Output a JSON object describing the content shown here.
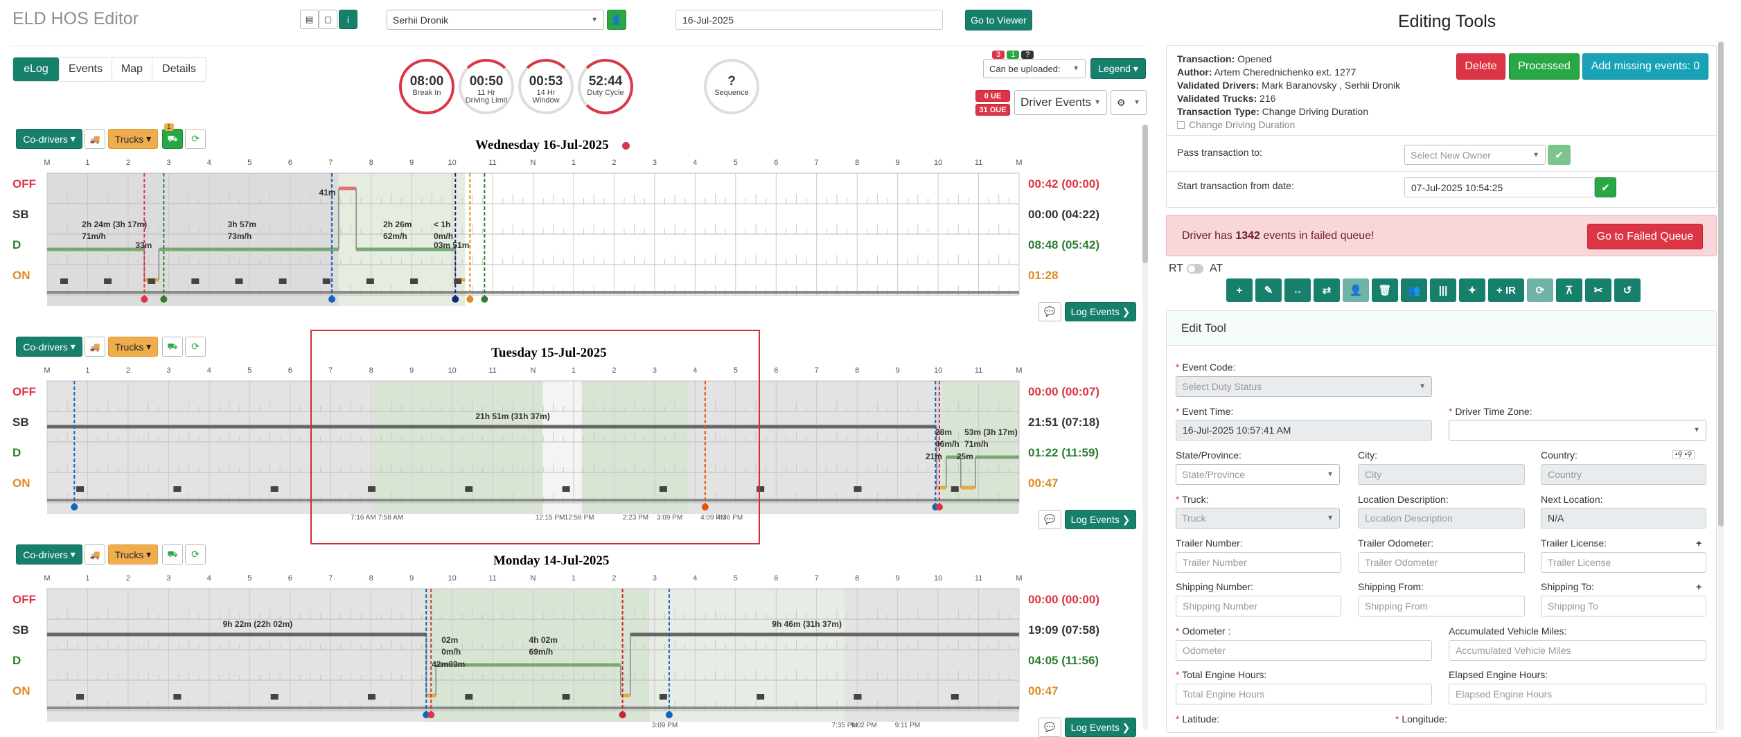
{
  "app": {
    "title": "ELD HOS Editor",
    "driver": "Serhii Dronik",
    "date": "16-Jul-2025",
    "viewer_btn": "Go to Viewer"
  },
  "tabs": [
    "eLog",
    "Events",
    "Map",
    "Details"
  ],
  "gauges": [
    {
      "value": "08:00",
      "l1": "Break In",
      "l2": ""
    },
    {
      "value": "00:50",
      "l1": "11 Hr",
      "l2": "Driving Limit"
    },
    {
      "value": "00:53",
      "l1": "14 Hr",
      "l2": "Window"
    },
    {
      "value": "52:44",
      "l1": "Duty Cycle",
      "l2": ""
    },
    {
      "value": "?",
      "l1": "Sequence",
      "l2": ""
    }
  ],
  "upload": {
    "badge_red": "3",
    "badge_green": "1",
    "badge_dark": "?",
    "select": "Can be uploaded:",
    "legend": "Legend",
    "ue": "0 UE",
    "oue": "31 OUE",
    "driver_events": "Driver Events"
  },
  "toolbar": {
    "codrivers": "Co-drivers",
    "trucks": "Trucks",
    "badge": "1"
  },
  "status_labels": [
    "OFF",
    "SB",
    "D",
    "ON"
  ],
  "hour_labels": [
    "M",
    "1",
    "2",
    "3",
    "4",
    "5",
    "6",
    "7",
    "8",
    "9",
    "10",
    "11",
    "N",
    "1",
    "2",
    "3",
    "4",
    "5",
    "6",
    "7",
    "8",
    "9",
    "10",
    "11",
    "M"
  ],
  "days": [
    {
      "title": "Wednesday 16-Jul-2025",
      "totals": [
        "00:42 (00:00)",
        "00:00 (04:22)",
        "08:48 (05:42)",
        "01:28"
      ],
      "labels": [
        {
          "t": "41m",
          "x": 0.294,
          "r": 0.12
        },
        {
          "t": "2h 24m (3h 17m)",
          "x": 0.05,
          "r": 0.38
        },
        {
          "t": "71m/h",
          "x": 0.05,
          "r": 0.48
        },
        {
          "t": "3h 57m",
          "x": 0.2,
          "r": 0.38
        },
        {
          "t": "73m/h",
          "x": 0.2,
          "r": 0.48
        },
        {
          "t": "2h 26m",
          "x": 0.36,
          "r": 0.38
        },
        {
          "t": "62m/h",
          "x": 0.36,
          "r": 0.48
        },
        {
          "t": "< 1h",
          "x": 0.412,
          "r": 0.38
        },
        {
          "t": "0m/h",
          "x": 0.412,
          "r": 0.48
        },
        {
          "t": "33m",
          "x": 0.105,
          "r": 0.55
        },
        {
          "t": "03m 51m",
          "x": 0.412,
          "r": 0.55
        }
      ],
      "log_btn": "Log Events"
    },
    {
      "title": "Tuesday 15-Jul-2025",
      "totals": [
        "00:00 (00:07)",
        "21:51 (07:18)",
        "01:22 (11:59)",
        "00:47"
      ],
      "labels": [
        {
          "t": "21h 51m (31h 37m)",
          "x": 0.455,
          "r": 0.25
        },
        {
          "t": "28m",
          "x": 0.928,
          "r": 0.38
        },
        {
          "t": "53m (3h 17m)",
          "x": 0.958,
          "r": 0.38
        },
        {
          "t": "46m/h",
          "x": 0.928,
          "r": 0.48
        },
        {
          "t": "71m/h",
          "x": 0.958,
          "r": 0.48
        },
        {
          "t": "21m",
          "x": 0.918,
          "r": 0.58
        },
        {
          "t": "25m",
          "x": 0.95,
          "r": 0.58
        }
      ],
      "times": [
        {
          "t": "7:16 AM 7:58 AM",
          "x": 0.33
        },
        {
          "t": "12:15 PM",
          "x": 0.52
        },
        {
          "t": "12:58 PM",
          "x": 0.55
        },
        {
          "t": "2:23 PM",
          "x": 0.61
        },
        {
          "t": "3:09 PM",
          "x": 0.645
        },
        {
          "t": "4:09 PM",
          "x": 0.69
        },
        {
          "t": "4:36 PM",
          "x": 0.707
        }
      ],
      "log_btn": "Log Events"
    },
    {
      "title": "Monday 14-Jul-2025",
      "totals": [
        "00:00 (00:00)",
        "19:09 (07:58)",
        "04:05 (11:56)",
        "00:47"
      ],
      "labels": [
        {
          "t": "9h 22m (22h 02m)",
          "x": 0.195,
          "r": 0.25
        },
        {
          "t": "9h 46m (31h 37m)",
          "x": 0.76,
          "r": 0.25
        },
        {
          "t": "02m",
          "x": 0.42,
          "r": 0.38
        },
        {
          "t": "4h 02m",
          "x": 0.51,
          "r": 0.38
        },
        {
          "t": "0m/h",
          "x": 0.42,
          "r": 0.48
        },
        {
          "t": "69m/h",
          "x": 0.51,
          "r": 0.48
        },
        {
          "t": "42m03m",
          "x": 0.41,
          "r": 0.58
        }
      ],
      "times": [
        {
          "t": "3:09 PM",
          "x": 0.64
        },
        {
          "t": "7:35 PM",
          "x": 0.825
        },
        {
          "t": "9:02 PM",
          "x": 0.845
        },
        {
          "t": "9:11 PM",
          "x": 0.89
        }
      ],
      "log_btn": "Log Events"
    }
  ],
  "editing": {
    "title": "Editing Tools",
    "info": [
      {
        "k": "Transaction:",
        "v": " Opened"
      },
      {
        "k": "Author:",
        "v": " Artem Cherednichenko ext. 1277"
      },
      {
        "k": "Validated Drivers:",
        "v": " Mark Baranovsky , Serhii Dronik"
      },
      {
        "k": "Validated Trucks:",
        "v": " 216"
      },
      {
        "k": "Transaction Type:",
        "v": " Change Driving Duration"
      }
    ],
    "checkbox": "Change Driving Duration",
    "delete": "Delete",
    "processed": "Processed",
    "add_missing": "Add missing events: 0",
    "pass_label": "Pass transaction to:",
    "pass_ph": "Select New Owner",
    "start_label": "Start transaction from date:",
    "start_val": "07-Jul-2025 10:54:25",
    "failed_pre": "Driver has ",
    "failed_num": "1342",
    "failed_post": " events in failed queue!",
    "failed_btn": "Go to Failed Queue",
    "rt": "RT",
    "at": "AT",
    "tools": [
      "+",
      "✎",
      "↔",
      "⇄",
      "👤",
      "🗑",
      "👥",
      "|||",
      "✦",
      "+ IR",
      "⟳",
      "⊼",
      "✂",
      "↺"
    ],
    "edit_tool": "Edit Tool",
    "event_code_label": "Event Code:",
    "event_code_ph": "Select Duty Status",
    "event_time_label": "Event Time:",
    "event_time_val": "16-Jul-2025 10:57:41 AM",
    "tz_label": "Driver Time Zone:",
    "state_label": "State/Province:",
    "state_ph": "State/Province",
    "city_label": "City:",
    "city_ph": "City",
    "country_label": "Country:",
    "country_ph": "Country",
    "truck_label": "Truck:",
    "truck_ph": "Truck",
    "locdesc_label": "Location Description:",
    "locdesc_ph": "Location Description",
    "next_label": "Next Location:",
    "next_val": "N/A",
    "tnum_label": "Trailer Number:",
    "tnum_ph": "Trailer Number",
    "todo_label": "Trailer Odometer:",
    "todo_ph": "Trailer Odometer",
    "tlic_label": "Trailer License:",
    "tlic_ph": "Trailer License",
    "snum_label": "Shipping Number:",
    "snum_ph": "Shipping Number",
    "sfrom_label": "Shipping From:",
    "sfrom_ph": "Shipping From",
    "sto_label": "Shipping To:",
    "sto_ph": "Shipping To",
    "odo_label": "Odometer :",
    "odo_ph": "Odometer",
    "avm_label": "Accumulated Vehicle Miles:",
    "avm_ph": "Accumulated Vehicle Miles",
    "teh_label": "Total Engine Hours:",
    "teh_ph": "Total Engine Hours",
    "eeh_label": "Elapsed Engine Hours:",
    "eeh_ph": "Elapsed Engine Hours",
    "lat_label": "Latitude:",
    "lon_label": "Longitude:"
  }
}
